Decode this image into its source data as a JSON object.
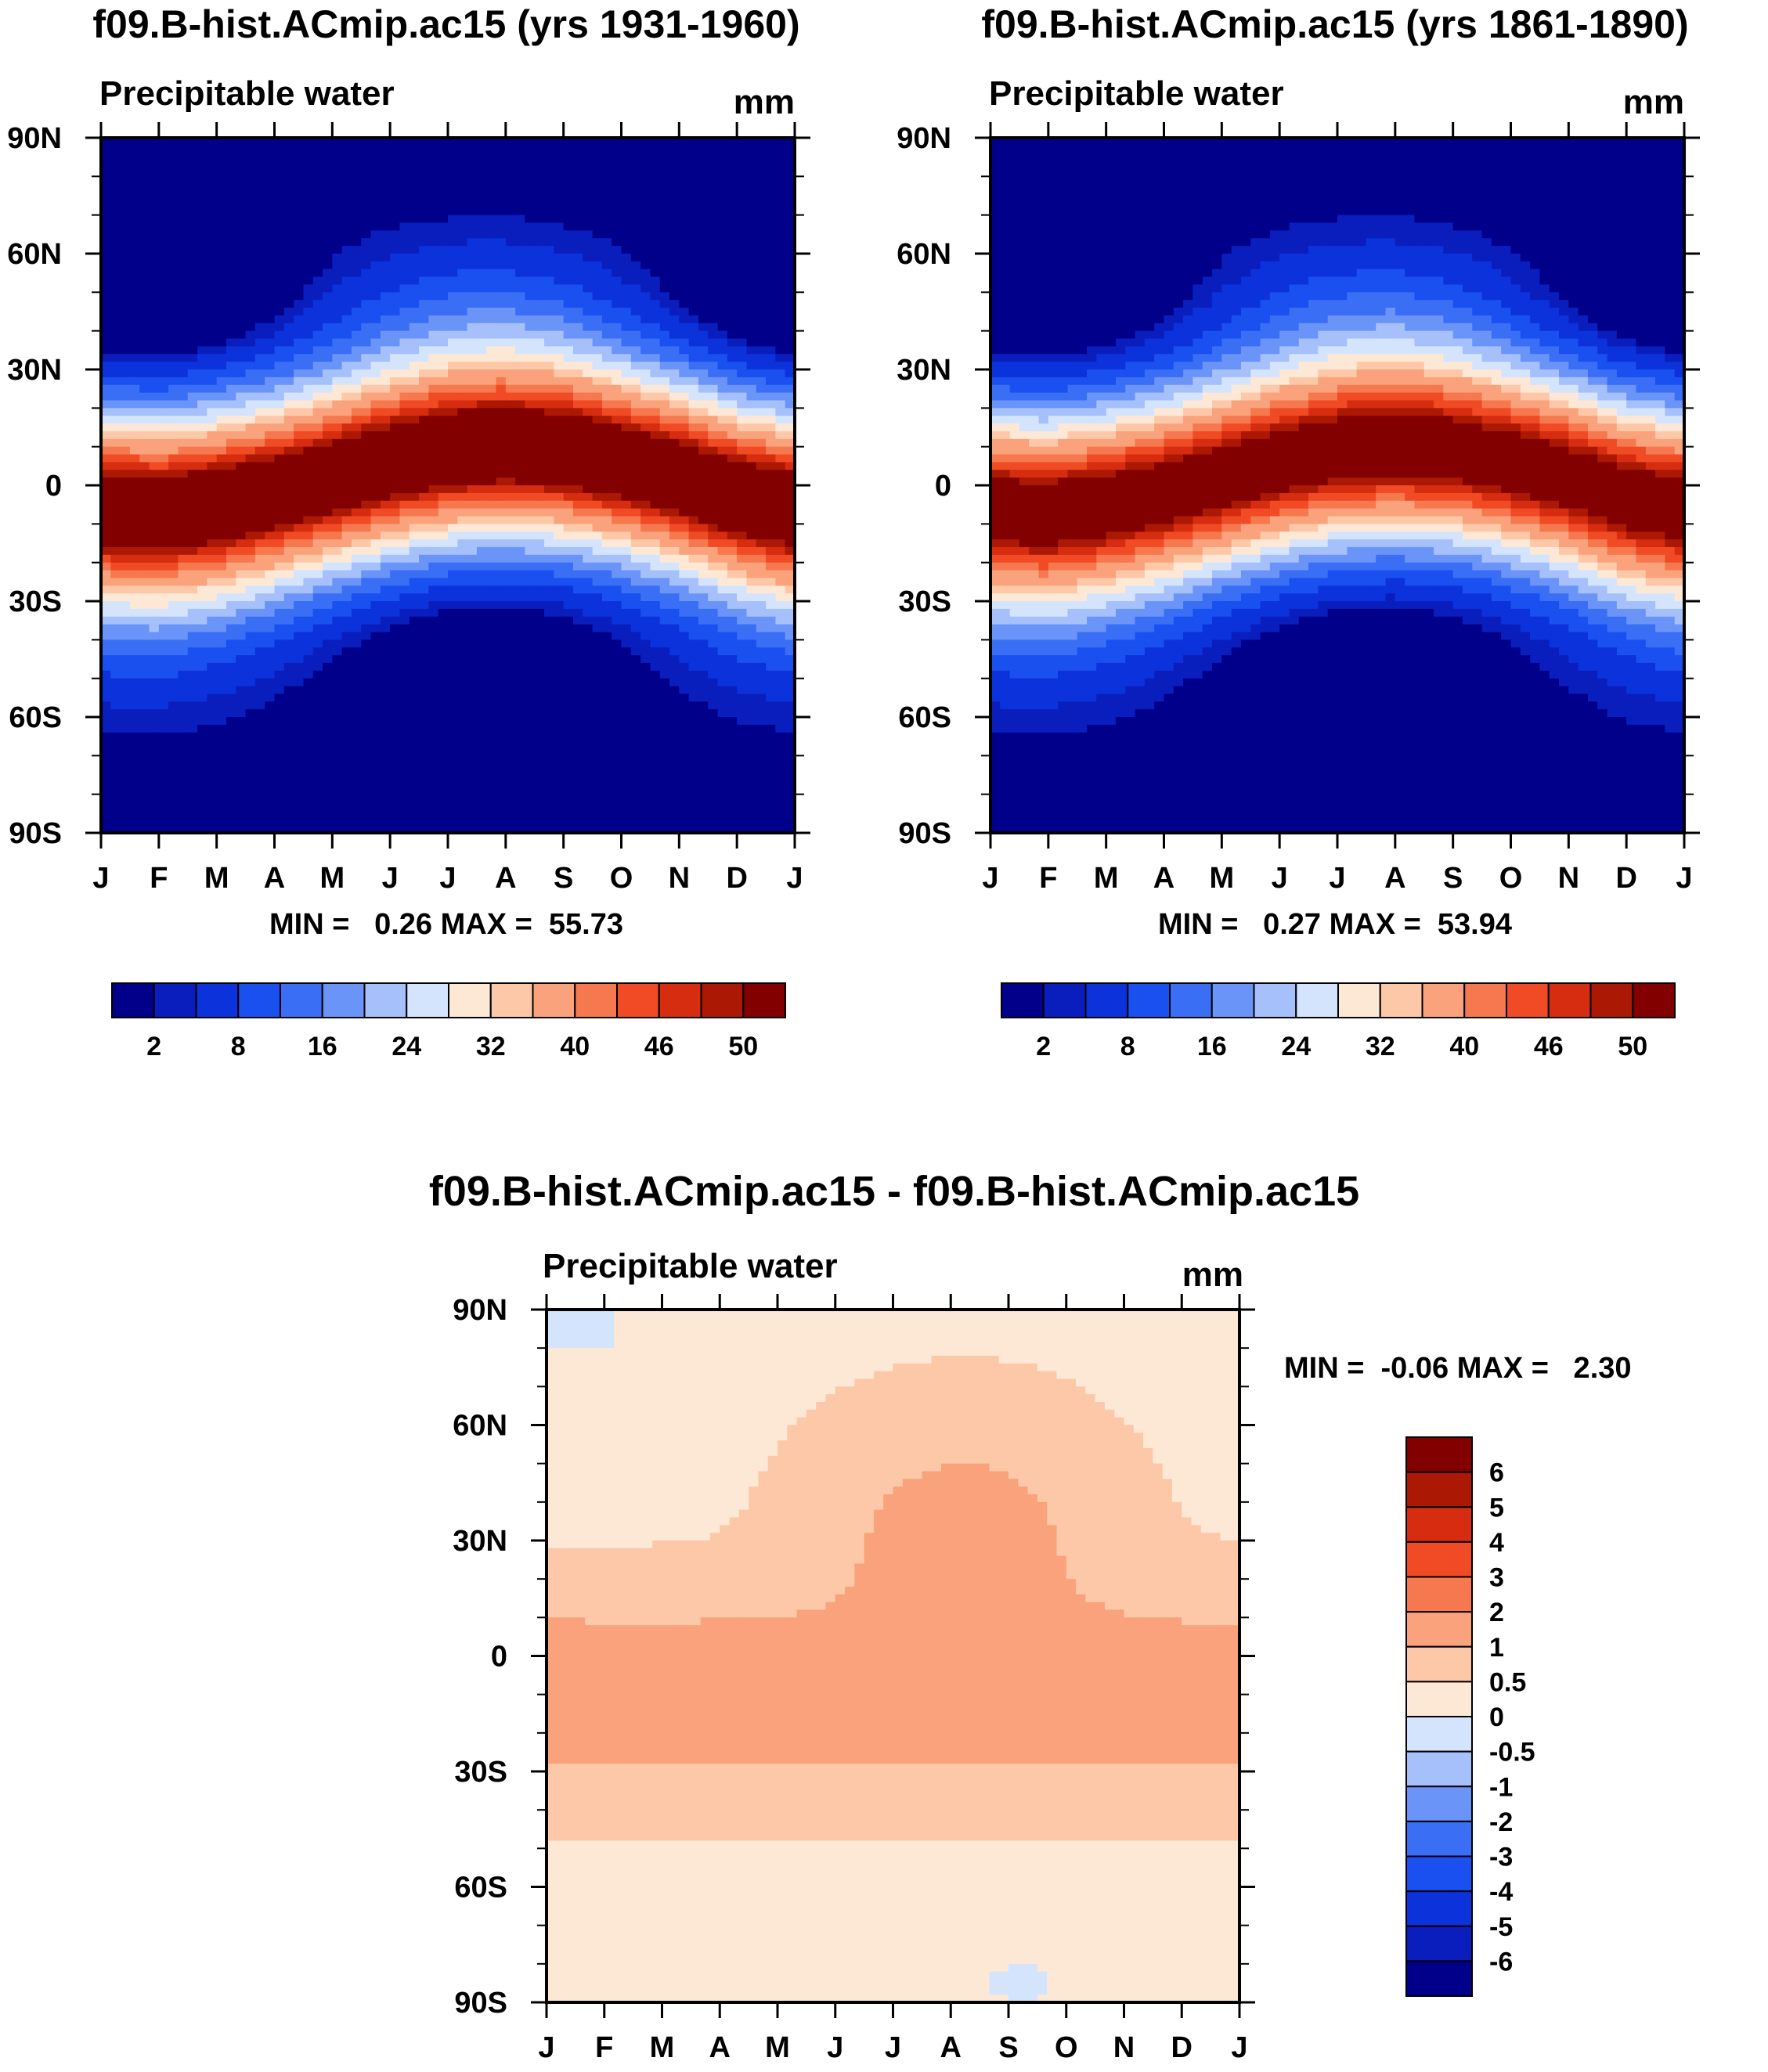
{
  "figure": {
    "panels": [
      {
        "title": "f09.B-hist.ACmip.ac15 (yrs 1931-1960)",
        "variable": "Precipitable water",
        "units": "mm",
        "stats": "MIN =   0.26 MAX =  55.73"
      },
      {
        "title": "f09.B-hist.ACmip.ac15 (yrs 1861-1890)",
        "variable": "Precipitable water",
        "units": "mm",
        "stats": "MIN =   0.27 MAX =  53.94"
      },
      {
        "title": "f09.B-hist.ACmip.ac15 - f09.B-hist.ACmip.ac15",
        "variable": "Precipitable water",
        "units": "mm",
        "stats": "MIN =  -0.06 MAX =   2.30"
      }
    ]
  },
  "chart_data": [
    {
      "type": "heatmap",
      "title": "f09.B-hist.ACmip.ac15 (yrs 1931-1960)",
      "subtitle": "Precipitable water",
      "units": "mm",
      "x_ticks": [
        "J",
        "F",
        "M",
        "A",
        "M",
        "J",
        "J",
        "A",
        "S",
        "O",
        "N",
        "D",
        "J"
      ],
      "y_ticks": [
        "90N",
        "60N",
        "30N",
        "0",
        "30S",
        "60S",
        "90S"
      ],
      "xlim": [
        0,
        12
      ],
      "ylim": [
        -90,
        90
      ],
      "levels": [
        2,
        4,
        8,
        12,
        16,
        20,
        24,
        28,
        32,
        35,
        40,
        43,
        46,
        48,
        50
      ],
      "colorbar_labels": [
        "2",
        "8",
        "16",
        "24",
        "32",
        "40",
        "46",
        "50"
      ],
      "colors": [
        "#00008a",
        "#0a1ebe",
        "#0c32dc",
        "#1a4ff0",
        "#3a6ef5",
        "#6a94f8",
        "#a5c0fb",
        "#d4e4fc",
        "#fde8d6",
        "#fcc8a8",
        "#f9a27c",
        "#f6784e",
        "#f04b25",
        "#d62c10",
        "#ab1804",
        "#820000"
      ],
      "min": 0.26,
      "max": 55.73,
      "field": {
        "model": "zonal-mean annual cycle",
        "itcz_lat_by_month": [
          -6,
          -7,
          -5,
          -2,
          2,
          6,
          9,
          10,
          9,
          6,
          2,
          -3,
          -6
        ],
        "peak_mm": 55.73,
        "tropical_halfwidth_deg": 27,
        "polar_mm": 0.26
      }
    },
    {
      "type": "heatmap",
      "title": "f09.B-hist.ACmip.ac15 (yrs 1861-1890)",
      "subtitle": "Precipitable water",
      "units": "mm",
      "x_ticks": [
        "J",
        "F",
        "M",
        "A",
        "M",
        "J",
        "J",
        "A",
        "S",
        "O",
        "N",
        "D",
        "J"
      ],
      "y_ticks": [
        "90N",
        "60N",
        "30N",
        "0",
        "30S",
        "60S",
        "90S"
      ],
      "xlim": [
        0,
        12
      ],
      "ylim": [
        -90,
        90
      ],
      "levels": [
        2,
        4,
        8,
        12,
        16,
        20,
        24,
        28,
        32,
        35,
        40,
        43,
        46,
        48,
        50
      ],
      "colorbar_labels": [
        "2",
        "8",
        "16",
        "24",
        "32",
        "40",
        "46",
        "50"
      ],
      "colors": [
        "#00008a",
        "#0a1ebe",
        "#0c32dc",
        "#1a4ff0",
        "#3a6ef5",
        "#6a94f8",
        "#a5c0fb",
        "#d4e4fc",
        "#fde8d6",
        "#fcc8a8",
        "#f9a27c",
        "#f6784e",
        "#f04b25",
        "#d62c10",
        "#ab1804",
        "#820000"
      ],
      "min": 0.27,
      "max": 53.94,
      "field": {
        "model": "zonal-mean annual cycle",
        "itcz_lat_by_month": [
          -6,
          -7,
          -5,
          -2,
          2,
          6,
          9,
          10,
          9,
          6,
          2,
          -3,
          -6
        ],
        "peak_mm": 53.94,
        "tropical_halfwidth_deg": 27,
        "polar_mm": 0.27
      }
    },
    {
      "type": "heatmap",
      "title": "f09.B-hist.ACmip.ac15 - f09.B-hist.ACmip.ac15",
      "subtitle": "Precipitable water",
      "units": "mm",
      "x_ticks": [
        "J",
        "F",
        "M",
        "A",
        "M",
        "J",
        "J",
        "A",
        "S",
        "O",
        "N",
        "D",
        "J"
      ],
      "y_ticks": [
        "90N",
        "60N",
        "30N",
        "0",
        "30S",
        "60S",
        "90S"
      ],
      "xlim": [
        0,
        12
      ],
      "ylim": [
        -90,
        90
      ],
      "levels": [
        -6,
        -5,
        -4,
        -3,
        -2,
        -1,
        -0.5,
        0,
        0.5,
        1,
        2,
        3,
        4,
        5,
        6
      ],
      "colorbar_labels": [
        "6",
        "5",
        "4",
        "3",
        "2",
        "1",
        "0.5",
        "0",
        "-0.5",
        "-1",
        "-2",
        "-3",
        "-4",
        "-5",
        "-6"
      ],
      "colors": [
        "#00008a",
        "#0a1ebe",
        "#0c32dc",
        "#1a4ff0",
        "#3a6ef5",
        "#6a94f8",
        "#a5c0fb",
        "#d4e4fc",
        "#fde8d6",
        "#fcc8a8",
        "#f9a27c",
        "#f6784e",
        "#f04b25",
        "#d62c10",
        "#ab1804",
        "#820000"
      ],
      "min": -0.06,
      "max": 2.3,
      "field": {
        "model": "difference",
        "core_mm": 2.0,
        "core_lat_range": [
          -30,
          10
        ],
        "summer_tongue_north_lat": 60,
        "local_max_mm": 2.3
      }
    }
  ]
}
